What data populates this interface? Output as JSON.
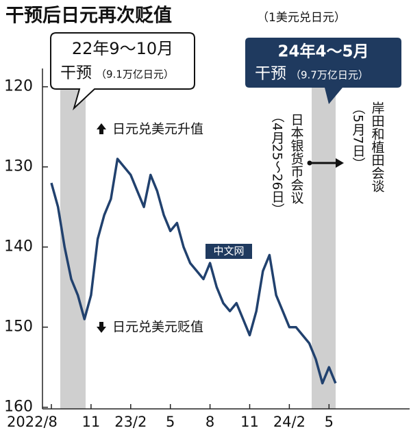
{
  "chart_data": {
    "type": "line",
    "title": "干预后日元再次贬值",
    "subtitle": "（1美元兑日元）",
    "categories": [
      "2022/8",
      null,
      null,
      null,
      null,
      null,
      "11",
      null,
      null,
      null,
      null,
      null,
      "23/2",
      null,
      null,
      null,
      null,
      null,
      "5",
      null,
      null,
      null,
      null,
      null,
      "8",
      null,
      null,
      null,
      null,
      null,
      "11",
      null,
      null,
      null,
      null,
      null,
      "24/2",
      null,
      null,
      null,
      null,
      null,
      "5",
      null
    ],
    "series": [
      {
        "color": "#21416e",
        "values": [
          132,
          135,
          140,
          144,
          146,
          149,
          146,
          139,
          136,
          134,
          129,
          130,
          131,
          133,
          135,
          131,
          133,
          136,
          138,
          137,
          140,
          142,
          143,
          144,
          142,
          145,
          147,
          148,
          147,
          149,
          151,
          148,
          143,
          141,
          146,
          148,
          150,
          150,
          151,
          152,
          154,
          157,
          155,
          157
        ]
      }
    ],
    "ylim": [
      119,
      160.2
    ],
    "yticks": [
      120,
      130,
      140,
      150,
      160
    ],
    "inverted_y": true,
    "grid": false,
    "annotations": {
      "first": {
        "period": "22年9～10月",
        "label": "干预",
        "amount": "（9.1万亿日元）"
      },
      "second": {
        "period": "24年4～5月",
        "label": "干预",
        "amount": "（9.7万亿日元）"
      },
      "up": "日元兑美元升值",
      "down": "日元兑美元贬值",
      "meeting": "日本银货币会议",
      "meeting_date": "（4月25～26日）",
      "talk": "岸田和植田会谈",
      "talk_date": "（5月7日）",
      "watermark": "中文网"
    }
  }
}
